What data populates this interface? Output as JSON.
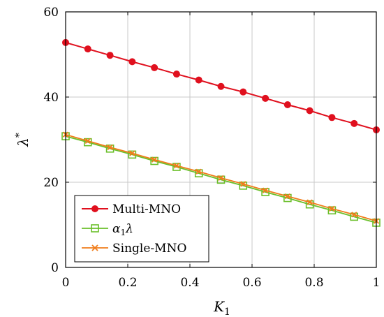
{
  "chart_data": {
    "type": "line",
    "xlabel": "K",
    "xlabel_sub": "1",
    "ylabel": "λ",
    "ylabel_sup": "*",
    "xlim": [
      0,
      1
    ],
    "ylim": [
      0,
      60
    ],
    "xticks": [
      0,
      0.2,
      0.4,
      0.6,
      0.8,
      1
    ],
    "xtick_labels": [
      "0",
      "0.2",
      "0.4",
      "0.6",
      "0.8",
      "1"
    ],
    "yticks": [
      0,
      20,
      40,
      60
    ],
    "ytick_labels": [
      "0",
      "20",
      "40",
      "60"
    ],
    "grid": true,
    "legend_position": "bottom-left",
    "x": [
      0,
      0.0714,
      0.1429,
      0.2143,
      0.2857,
      0.3571,
      0.4286,
      0.5,
      0.5714,
      0.6429,
      0.7143,
      0.7857,
      0.8571,
      0.9286,
      1
    ],
    "series": [
      {
        "name": "Multi-MNO",
        "color": "#e0101e",
        "marker": "circle",
        "values": [
          52.8,
          51.3,
          49.8,
          48.3,
          46.9,
          45.4,
          44.0,
          42.5,
          41.2,
          39.7,
          38.2,
          36.8,
          35.2,
          33.8,
          32.3
        ]
      },
      {
        "name": "α1λ",
        "name_main": "α",
        "name_sub": "1",
        "name_tail": "λ",
        "color": "#6abf2a",
        "marker": "square",
        "values": [
          30.8,
          29.4,
          27.9,
          26.5,
          25.0,
          23.6,
          22.1,
          20.6,
          19.2,
          17.7,
          16.3,
          14.8,
          13.4,
          11.9,
          10.5
        ]
      },
      {
        "name": "Single-MNO",
        "color": "#f07c1a",
        "marker": "x",
        "values": [
          31.2,
          29.7,
          28.2,
          26.8,
          25.3,
          23.9,
          22.5,
          21.0,
          19.6,
          18.1,
          16.7,
          15.3,
          13.8,
          12.4,
          10.9
        ]
      }
    ]
  }
}
